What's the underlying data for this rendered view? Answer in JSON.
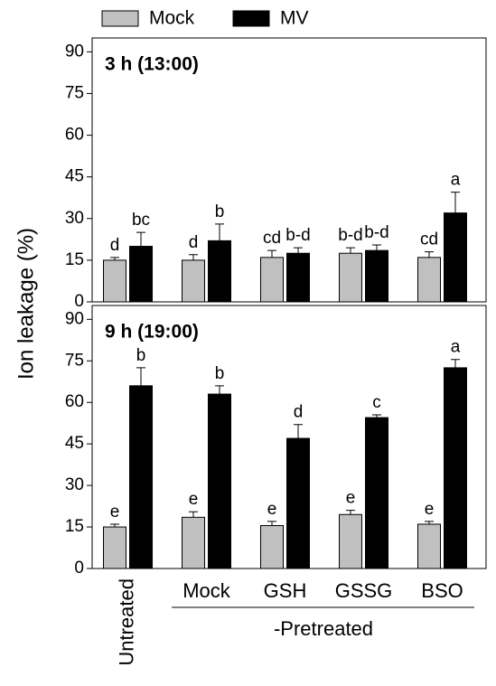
{
  "legend": [
    {
      "name": "Mock",
      "color": "#c0c0c0"
    },
    {
      "name": "MV",
      "color": "#000000"
    }
  ],
  "y_label": "Ion leakage (%)",
  "group_label": "-Pretreated",
  "chart_data": [
    {
      "type": "bar",
      "title": "3 h (13:00)",
      "ylim": [
        0,
        95
      ],
      "yticks": [
        0,
        15,
        30,
        45,
        60,
        75,
        90
      ],
      "series": [
        {
          "values": [
            15,
            15,
            16,
            17.5,
            16
          ],
          "errors": [
            1,
            2,
            2.5,
            2,
            2
          ],
          "letters": [
            "d",
            "d",
            "cd",
            "b-d",
            "cd"
          ]
        },
        {
          "values": [
            20,
            22,
            17.5,
            18.5,
            32
          ],
          "errors": [
            5,
            6,
            2,
            2,
            7.5
          ],
          "letters": [
            "bc",
            "b",
            "b-d",
            "b-d",
            "a"
          ]
        }
      ]
    },
    {
      "type": "bar",
      "title": "9 h (19:00)",
      "ylim": [
        0,
        95
      ],
      "yticks": [
        0,
        15,
        30,
        45,
        60,
        75,
        90
      ],
      "categories": [
        "Untreated",
        "Mock",
        "GSH",
        "GSSG",
        "BSO"
      ],
      "series": [
        {
          "values": [
            15,
            18.5,
            15.5,
            19.5,
            16
          ],
          "errors": [
            1,
            2,
            1.5,
            1.5,
            1
          ],
          "letters": [
            "e",
            "e",
            "e",
            "e",
            "e"
          ]
        },
        {
          "values": [
            66,
            63,
            47,
            54.5,
            72.5
          ],
          "errors": [
            6.5,
            3,
            5,
            1,
            3
          ],
          "letters": [
            "b",
            "b",
            "d",
            "c",
            "a"
          ]
        }
      ]
    }
  ]
}
